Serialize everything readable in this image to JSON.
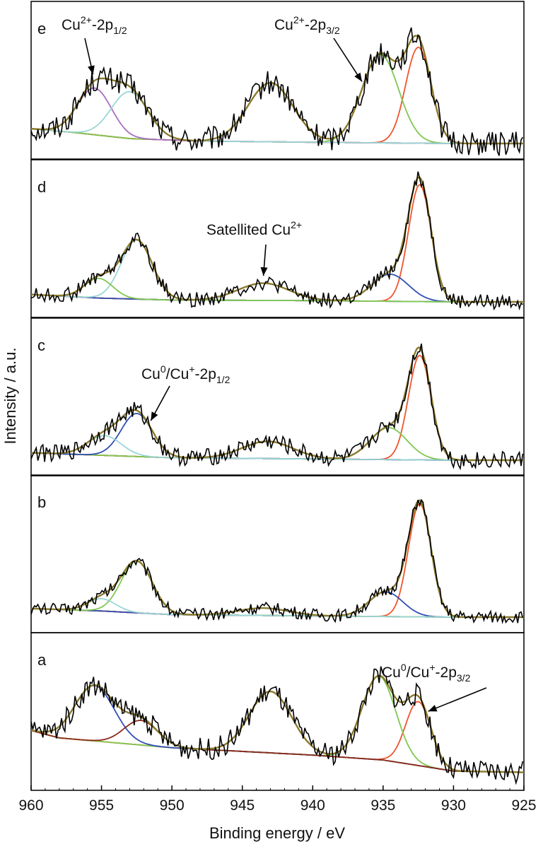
{
  "chart_data": {
    "type": "line",
    "xlabel": "Binding energy / eV",
    "ylabel": "Intensity / a.u.",
    "xlim": [
      960,
      925
    ],
    "x_reversed": true,
    "xticks": [
      960,
      955,
      950,
      945,
      940,
      935,
      930,
      925
    ],
    "grid": false,
    "colors": {
      "raw": "#000000",
      "envelope": "#8a7a2c",
      "background": "#8b2a1a",
      "background_a": "#f2d21c",
      "cu2_p32": "#f0552c",
      "cu2_p32_shoulder": "#7ec850",
      "cu_p12_a": "#2f4fb5",
      "cu_p12_b": "#9ad6d6",
      "cu_p12_c": "#a86fc0",
      "cu_p12_d": "#8b2a1a"
    },
    "panels": [
      {
        "label": "e",
        "annotations": [
          {
            "text": "Cu",
            "sup": "2+",
            "rest": "-2p",
            "sub": "1/2",
            "arrow_to_x": 955.6
          },
          {
            "text": "Cu",
            "sup": "2+",
            "rest": "-2p",
            "sub": "3/2",
            "arrow_to_x": 936.5
          }
        ],
        "background": [
          [
            960,
            0.12
          ],
          [
            957,
            0.09
          ],
          [
            953,
            0.04
          ],
          [
            948,
            0.02
          ],
          [
            940,
            0.01
          ],
          [
            930,
            0.0
          ],
          [
            925,
            0.0
          ]
        ],
        "peaks": [
          {
            "component": "cu2_p32",
            "center": 932.5,
            "height": 0.78,
            "width": 0.9
          },
          {
            "component": "cu2_p32_shoulder",
            "center": 935.2,
            "height": 0.72,
            "width": 1.3
          },
          {
            "component": "satellite",
            "center": 943.0,
            "height": 0.48,
            "width": 1.6
          },
          {
            "component": "cu_p12_c",
            "center": 955.5,
            "height": 0.38,
            "width": 1.2
          },
          {
            "component": "cu_p12_b",
            "center": 953.0,
            "height": 0.38,
            "width": 1.3
          }
        ],
        "noise_amplitude": 0.1
      },
      {
        "label": "d",
        "annotations": [
          {
            "text": "Satellited Cu",
            "sup": "2+",
            "rest": "",
            "sub": "",
            "arrow_to_x": 943.5
          }
        ],
        "background": [
          [
            960,
            0.06
          ],
          [
            955,
            0.03
          ],
          [
            950,
            0.015
          ],
          [
            940,
            0.01
          ],
          [
            930,
            0.0
          ],
          [
            925,
            0.0
          ]
        ],
        "peaks": [
          {
            "component": "cu2_p32",
            "center": 932.4,
            "height": 0.95,
            "width": 0.8
          },
          {
            "component": "cu_p12_a",
            "center": 934.5,
            "height": 0.22,
            "width": 1.3
          },
          {
            "component": "satellite",
            "center": 943.5,
            "height": 0.14,
            "width": 1.8
          },
          {
            "component": "cu_p12_b",
            "center": 952.5,
            "height": 0.48,
            "width": 1.1
          },
          {
            "component": "cu2_p32_shoulder",
            "center": 955.2,
            "height": 0.16,
            "width": 1.0
          }
        ],
        "noise_amplitude": 0.06
      },
      {
        "label": "c",
        "annotations": [
          {
            "text": "Cu",
            "sup": "0",
            "rest": "/Cu",
            "sup2": "+",
            "rest2": "-2p",
            "sub": "1/2",
            "arrow_to_x": 951.5
          }
        ],
        "background": [
          [
            960,
            0.06
          ],
          [
            955,
            0.04
          ],
          [
            950,
            0.02
          ],
          [
            940,
            0.01
          ],
          [
            930,
            0.0
          ],
          [
            925,
            0.0
          ]
        ],
        "peaks": [
          {
            "component": "cu2_p32",
            "center": 932.4,
            "height": 0.85,
            "width": 0.8
          },
          {
            "component": "cu2_p32_shoulder",
            "center": 934.6,
            "height": 0.26,
            "width": 1.3
          },
          {
            "component": "satellite",
            "center": 943.2,
            "height": 0.14,
            "width": 1.8
          },
          {
            "component": "cu_p12_a",
            "center": 952.5,
            "height": 0.35,
            "width": 1.1
          },
          {
            "component": "cu_p12_b",
            "center": 954.8,
            "height": 0.16,
            "width": 1.2
          }
        ],
        "noise_amplitude": 0.07
      },
      {
        "label": "b",
        "annotations": [],
        "background": [
          [
            960,
            0.07
          ],
          [
            955,
            0.05
          ],
          [
            950,
            0.02
          ],
          [
            940,
            0.01
          ],
          [
            930,
            0.0
          ],
          [
            925,
            0.0
          ]
        ],
        "peaks": [
          {
            "component": "cu2_p32",
            "center": 932.4,
            "height": 0.92,
            "width": 0.8
          },
          {
            "component": "cu_p12_a",
            "center": 934.8,
            "height": 0.2,
            "width": 1.2
          },
          {
            "component": "satellite",
            "center": 943.5,
            "height": 0.06,
            "width": 1.8
          },
          {
            "component": "cu2_p32_shoulder",
            "center": 952.5,
            "height": 0.42,
            "width": 1.1
          },
          {
            "component": "cu_p12_b",
            "center": 955.0,
            "height": 0.1,
            "width": 1.0
          }
        ],
        "noise_amplitude": 0.05
      },
      {
        "label": "a",
        "annotations": [
          {
            "text": "Cu",
            "sup": "0",
            "rest": "/Cu",
            "sup2": "+",
            "rest2": "-2p",
            "sub": "3/2",
            "arrow_to_x": 931.8
          }
        ],
        "background": [
          [
            960,
            0.36
          ],
          [
            958,
            0.3
          ],
          [
            950,
            0.22
          ],
          [
            940,
            0.16
          ],
          [
            935,
            0.12
          ],
          [
            930,
            0.03
          ],
          [
            925,
            0.02
          ]
        ],
        "peaks": [
          {
            "component": "cu2_p32",
            "center": 932.5,
            "height": 0.52,
            "width": 0.9
          },
          {
            "component": "cu2_p32_shoulder",
            "center": 935.3,
            "height": 0.68,
            "width": 1.2
          },
          {
            "component": "satellite",
            "center": 943.0,
            "height": 0.5,
            "width": 1.5
          },
          {
            "component": "cu_p12_a",
            "center": 955.5,
            "height": 0.45,
            "width": 1.4
          },
          {
            "component": "cu_p12_d",
            "center": 952.2,
            "height": 0.2,
            "width": 1.2
          }
        ],
        "noise_amplitude": 0.09
      }
    ]
  }
}
